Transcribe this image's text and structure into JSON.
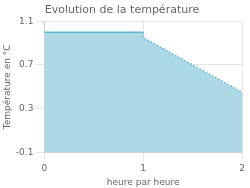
{
  "chart_data": {
    "type": "line",
    "title": "Evolution de la température",
    "xlabel": "heure par heure",
    "ylabel": "Température en °C",
    "series": [
      {
        "type": "area",
        "color": "#add8e6",
        "x": [
          0,
          1,
          1,
          2
        ],
        "values": [
          1.0,
          1.0,
          0.95,
          0.45
        ]
      },
      {
        "type": "line",
        "color": "#5bb8d4",
        "line_style": "solid",
        "x": [
          0,
          1
        ],
        "values": [
          1.0,
          1.0
        ]
      },
      {
        "type": "line",
        "color": "#5bb8d4",
        "line_style": "dotted",
        "x": [
          1,
          1,
          2
        ],
        "values": [
          1.0,
          0.95,
          0.45
        ]
      }
    ],
    "xlim": [
      0,
      2
    ],
    "ylim": [
      -0.1,
      1.1
    ],
    "xticks": [
      0,
      1,
      2
    ],
    "yticks": [
      -0.1,
      0.3,
      0.7,
      1.1
    ],
    "grid": true
  }
}
